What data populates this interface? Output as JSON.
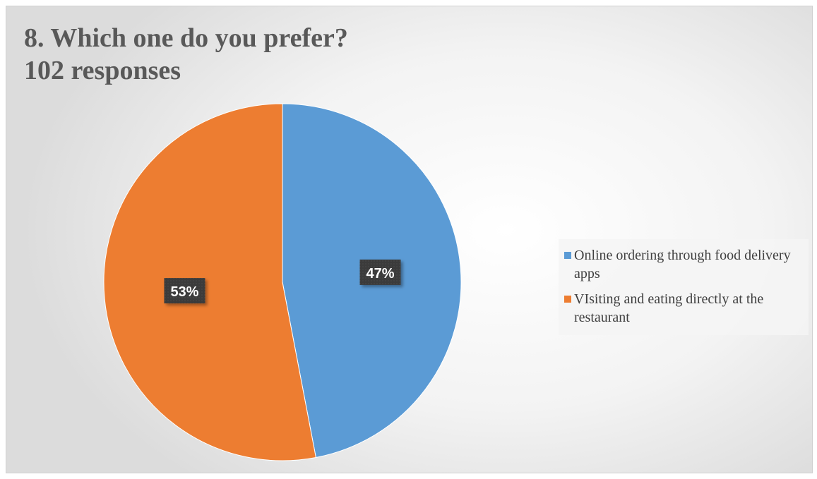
{
  "chart_data": {
    "type": "pie",
    "title": "8. Which one do you prefer?",
    "subtitle": "102 responses",
    "slices": [
      {
        "label": "Online ordering through food delivery apps",
        "value": 47,
        "display": "47%",
        "color": "#5b9bd5"
      },
      {
        "label": "VIsiting and eating directly at the restaurant",
        "value": 53,
        "display": "53%",
        "color": "#ed7d31"
      }
    ],
    "legend_position": "right"
  }
}
